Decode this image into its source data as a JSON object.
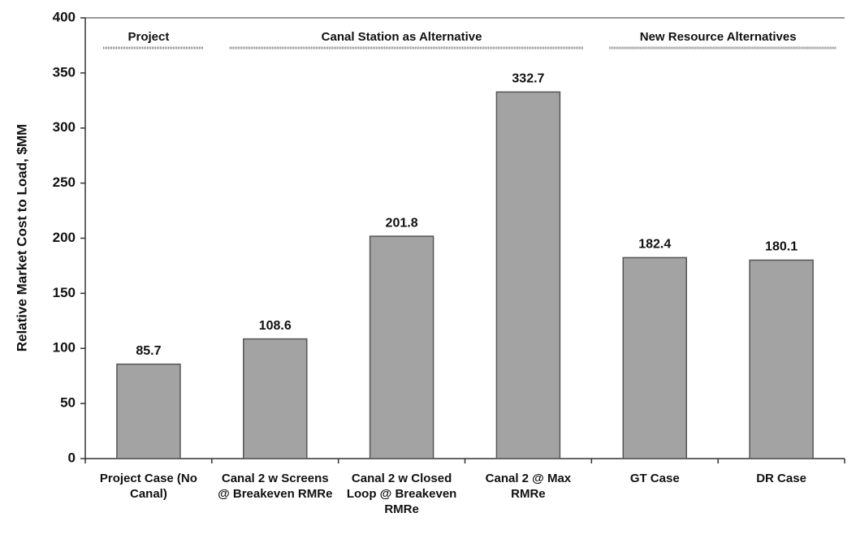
{
  "chart_data": {
    "type": "bar",
    "y_label": "Relative Market Cost to Load, $MM",
    "categories": [
      "Project Case (No Canal)",
      "Canal 2 w Screens @ Breakeven RMRe",
      "Canal 2 w Closed Loop @ Breakeven RMRe",
      "Canal 2 @ Max RMRe",
      "GT Case",
      "DR Case"
    ],
    "values": [
      85.7,
      108.6,
      201.8,
      332.7,
      182.4,
      180.1
    ],
    "color": "#a3a3a3",
    "ylim": [
      0,
      400
    ],
    "yticks": [
      0,
      50,
      100,
      150,
      200,
      250,
      300,
      350,
      400
    ],
    "grid": false,
    "groups": [
      {
        "label": "Project",
        "span": 1
      },
      {
        "label": "Canal Station as Alternative",
        "span": 3
      },
      {
        "label": "New Resource Alternatives",
        "span": 2
      }
    ]
  }
}
